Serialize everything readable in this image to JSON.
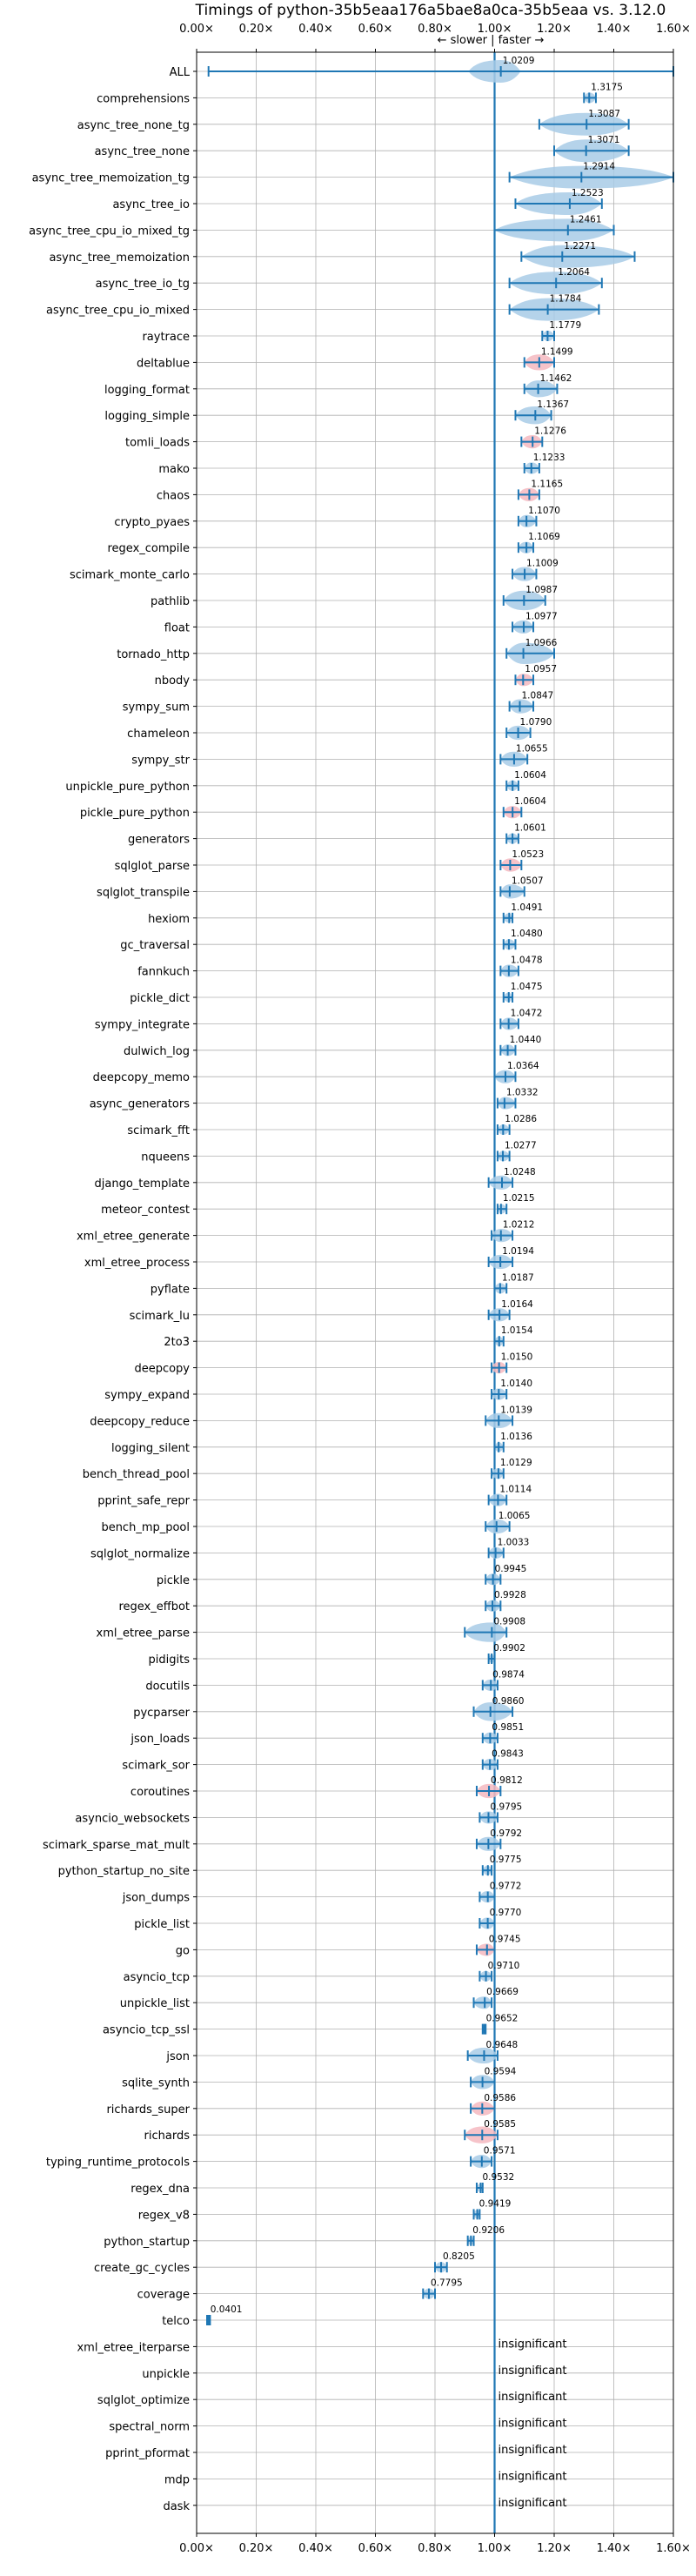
{
  "chart_data": {
    "type": "violin",
    "title": "Timings of python-35b5eaa176a5bae8a0ca-35b5eaa vs. 3.12.0",
    "direction_label": "← slower | faster →",
    "xlim": [
      0,
      1.6
    ],
    "xticks": [
      "0.00×",
      "0.20×",
      "0.40×",
      "0.60×",
      "0.80×",
      "1.00×",
      "1.20×",
      "1.40×",
      "1.60×"
    ],
    "reference_line": 1.0,
    "grid": true,
    "insignificant_label": "insignificant",
    "benchmarks": [
      {
        "name": "ALL",
        "value": 1.0209,
        "label": "1.0209",
        "lo": 0.04,
        "hi": 1.6
      },
      {
        "name": "comprehensions",
        "value": 1.3175,
        "label": "1.3175",
        "lo": 1.3,
        "hi": 1.34
      },
      {
        "name": "async_tree_none_tg",
        "value": 1.3087,
        "label": "1.3087",
        "lo": 1.15,
        "hi": 1.45
      },
      {
        "name": "async_tree_none",
        "value": 1.3071,
        "label": "1.3071",
        "lo": 1.2,
        "hi": 1.45
      },
      {
        "name": "async_tree_memoization_tg",
        "value": 1.2914,
        "label": "1.2914",
        "lo": 1.05,
        "hi": 1.6
      },
      {
        "name": "async_tree_io",
        "value": 1.2523,
        "label": "1.2523",
        "lo": 1.07,
        "hi": 1.36
      },
      {
        "name": "async_tree_cpu_io_mixed_tg",
        "value": 1.2461,
        "label": "1.2461",
        "lo": 1.0,
        "hi": 1.4
      },
      {
        "name": "async_tree_memoization",
        "value": 1.2271,
        "label": "1.2271",
        "lo": 1.09,
        "hi": 1.47
      },
      {
        "name": "async_tree_io_tg",
        "value": 1.2064,
        "label": "1.2064",
        "lo": 1.05,
        "hi": 1.36
      },
      {
        "name": "async_tree_cpu_io_mixed",
        "value": 1.1784,
        "label": "1.1784",
        "lo": 1.05,
        "hi": 1.35
      },
      {
        "name": "raytrace",
        "value": 1.1779,
        "label": "1.1779",
        "lo": 1.16,
        "hi": 1.2
      },
      {
        "name": "deltablue",
        "value": 1.1499,
        "label": "1.1499",
        "lo": 1.1,
        "hi": 1.2,
        "pink": true
      },
      {
        "name": "logging_format",
        "value": 1.1462,
        "label": "1.1462",
        "lo": 1.1,
        "hi": 1.21
      },
      {
        "name": "logging_simple",
        "value": 1.1367,
        "label": "1.1367",
        "lo": 1.07,
        "hi": 1.19
      },
      {
        "name": "tomli_loads",
        "value": 1.1276,
        "label": "1.1276",
        "lo": 1.09,
        "hi": 1.16,
        "pink": true
      },
      {
        "name": "mako",
        "value": 1.1233,
        "label": "1.1233",
        "lo": 1.1,
        "hi": 1.15
      },
      {
        "name": "chaos",
        "value": 1.1165,
        "label": "1.1165",
        "lo": 1.08,
        "hi": 1.15,
        "pink": true
      },
      {
        "name": "crypto_pyaes",
        "value": 1.107,
        "label": "1.1070",
        "lo": 1.08,
        "hi": 1.14
      },
      {
        "name": "regex_compile",
        "value": 1.1069,
        "label": "1.1069",
        "lo": 1.08,
        "hi": 1.13
      },
      {
        "name": "scimark_monte_carlo",
        "value": 1.1009,
        "label": "1.1009",
        "lo": 1.06,
        "hi": 1.14
      },
      {
        "name": "pathlib",
        "value": 1.0987,
        "label": "1.0987",
        "lo": 1.03,
        "hi": 1.17
      },
      {
        "name": "float",
        "value": 1.0977,
        "label": "1.0977",
        "lo": 1.06,
        "hi": 1.13
      },
      {
        "name": "tornado_http",
        "value": 1.0966,
        "label": "1.0966",
        "lo": 1.04,
        "hi": 1.2
      },
      {
        "name": "nbody",
        "value": 1.0957,
        "label": "1.0957",
        "lo": 1.07,
        "hi": 1.13,
        "pink": true
      },
      {
        "name": "sympy_sum",
        "value": 1.0847,
        "label": "1.0847",
        "lo": 1.05,
        "hi": 1.13
      },
      {
        "name": "chameleon",
        "value": 1.079,
        "label": "1.0790",
        "lo": 1.04,
        "hi": 1.12
      },
      {
        "name": "sympy_str",
        "value": 1.0655,
        "label": "1.0655",
        "lo": 1.02,
        "hi": 1.11
      },
      {
        "name": "unpickle_pure_python",
        "value": 1.0604,
        "label": "1.0604",
        "lo": 1.04,
        "hi": 1.08
      },
      {
        "name": "pickle_pure_python",
        "value": 1.0604,
        "label": "1.0604",
        "lo": 1.03,
        "hi": 1.09,
        "pink": true
      },
      {
        "name": "generators",
        "value": 1.0601,
        "label": "1.0601",
        "lo": 1.04,
        "hi": 1.08
      },
      {
        "name": "sqlglot_parse",
        "value": 1.0523,
        "label": "1.0523",
        "lo": 1.02,
        "hi": 1.09,
        "pink": true
      },
      {
        "name": "sqlglot_transpile",
        "value": 1.0507,
        "label": "1.0507",
        "lo": 1.02,
        "hi": 1.1
      },
      {
        "name": "hexiom",
        "value": 1.0491,
        "label": "1.0491",
        "lo": 1.03,
        "hi": 1.06
      },
      {
        "name": "gc_traversal",
        "value": 1.048,
        "label": "1.0480",
        "lo": 1.03,
        "hi": 1.07
      },
      {
        "name": "fannkuch",
        "value": 1.0478,
        "label": "1.0478",
        "lo": 1.02,
        "hi": 1.08
      },
      {
        "name": "pickle_dict",
        "value": 1.0475,
        "label": "1.0475",
        "lo": 1.03,
        "hi": 1.06
      },
      {
        "name": "sympy_integrate",
        "value": 1.0472,
        "label": "1.0472",
        "lo": 1.02,
        "hi": 1.08
      },
      {
        "name": "dulwich_log",
        "value": 1.044,
        "label": "1.0440",
        "lo": 1.02,
        "hi": 1.07
      },
      {
        "name": "deepcopy_memo",
        "value": 1.0364,
        "label": "1.0364",
        "lo": 1.0,
        "hi": 1.07
      },
      {
        "name": "async_generators",
        "value": 1.0332,
        "label": "1.0332",
        "lo": 1.01,
        "hi": 1.07
      },
      {
        "name": "scimark_fft",
        "value": 1.0286,
        "label": "1.0286",
        "lo": 1.01,
        "hi": 1.05
      },
      {
        "name": "nqueens",
        "value": 1.0277,
        "label": "1.0277",
        "lo": 1.01,
        "hi": 1.05
      },
      {
        "name": "django_template",
        "value": 1.0248,
        "label": "1.0248",
        "lo": 0.98,
        "hi": 1.06
      },
      {
        "name": "meteor_contest",
        "value": 1.0215,
        "label": "1.0215",
        "lo": 1.01,
        "hi": 1.04
      },
      {
        "name": "xml_etree_generate",
        "value": 1.0212,
        "label": "1.0212",
        "lo": 0.99,
        "hi": 1.06
      },
      {
        "name": "xml_etree_process",
        "value": 1.0194,
        "label": "1.0194",
        "lo": 0.98,
        "hi": 1.06
      },
      {
        "name": "pyflate",
        "value": 1.0187,
        "label": "1.0187",
        "lo": 1.0,
        "hi": 1.04
      },
      {
        "name": "scimark_lu",
        "value": 1.0164,
        "label": "1.0164",
        "lo": 0.98,
        "hi": 1.05
      },
      {
        "name": "2to3",
        "value": 1.0154,
        "label": "1.0154",
        "lo": 1.0,
        "hi": 1.03
      },
      {
        "name": "deepcopy",
        "value": 1.015,
        "label": "1.0150",
        "lo": 0.99,
        "hi": 1.04,
        "pink": true
      },
      {
        "name": "sympy_expand",
        "value": 1.014,
        "label": "1.0140",
        "lo": 0.99,
        "hi": 1.04
      },
      {
        "name": "deepcopy_reduce",
        "value": 1.0139,
        "label": "1.0139",
        "lo": 0.97,
        "hi": 1.06
      },
      {
        "name": "logging_silent",
        "value": 1.0136,
        "label": "1.0136",
        "lo": 1.0,
        "hi": 1.03
      },
      {
        "name": "bench_thread_pool",
        "value": 1.0129,
        "label": "1.0129",
        "lo": 0.99,
        "hi": 1.03
      },
      {
        "name": "pprint_safe_repr",
        "value": 1.0114,
        "label": "1.0114",
        "lo": 0.98,
        "hi": 1.04
      },
      {
        "name": "bench_mp_pool",
        "value": 1.0065,
        "label": "1.0065",
        "lo": 0.97,
        "hi": 1.05
      },
      {
        "name": "sqlglot_normalize",
        "value": 1.0033,
        "label": "1.0033",
        "lo": 0.98,
        "hi": 1.03
      },
      {
        "name": "pickle",
        "value": 0.9945,
        "label": "0.9945",
        "lo": 0.97,
        "hi": 1.02
      },
      {
        "name": "regex_effbot",
        "value": 0.9928,
        "label": "0.9928",
        "lo": 0.97,
        "hi": 1.02
      },
      {
        "name": "xml_etree_parse",
        "value": 0.9908,
        "label": "0.9908",
        "lo": 0.9,
        "hi": 1.04
      },
      {
        "name": "pidigits",
        "value": 0.9902,
        "label": "0.9902",
        "lo": 0.98,
        "hi": 1.0
      },
      {
        "name": "docutils",
        "value": 0.9874,
        "label": "0.9874",
        "lo": 0.96,
        "hi": 1.01
      },
      {
        "name": "pycparser",
        "value": 0.986,
        "label": "0.9860",
        "lo": 0.93,
        "hi": 1.06
      },
      {
        "name": "json_loads",
        "value": 0.9851,
        "label": "0.9851",
        "lo": 0.96,
        "hi": 1.01
      },
      {
        "name": "scimark_sor",
        "value": 0.9843,
        "label": "0.9843",
        "lo": 0.96,
        "hi": 1.01
      },
      {
        "name": "coroutines",
        "value": 0.9812,
        "label": "0.9812",
        "lo": 0.94,
        "hi": 1.02,
        "pink": true
      },
      {
        "name": "asyncio_websockets",
        "value": 0.9795,
        "label": "0.9795",
        "lo": 0.95,
        "hi": 1.01
      },
      {
        "name": "scimark_sparse_mat_mult",
        "value": 0.9792,
        "label": "0.9792",
        "lo": 0.94,
        "hi": 1.02
      },
      {
        "name": "python_startup_no_site",
        "value": 0.9775,
        "label": "0.9775",
        "lo": 0.96,
        "hi": 0.99
      },
      {
        "name": "json_dumps",
        "value": 0.9772,
        "label": "0.9772",
        "lo": 0.95,
        "hi": 1.0
      },
      {
        "name": "pickle_list",
        "value": 0.977,
        "label": "0.9770",
        "lo": 0.95,
        "hi": 1.0
      },
      {
        "name": "go",
        "value": 0.9745,
        "label": "0.9745",
        "lo": 0.94,
        "hi": 1.0,
        "pink": true
      },
      {
        "name": "asyncio_tcp",
        "value": 0.971,
        "label": "0.9710",
        "lo": 0.95,
        "hi": 0.99
      },
      {
        "name": "unpickle_list",
        "value": 0.9669,
        "label": "0.9669",
        "lo": 0.93,
        "hi": 0.99
      },
      {
        "name": "asyncio_tcp_ssl",
        "value": 0.9652,
        "label": "0.9652",
        "lo": 0.96,
        "hi": 0.97
      },
      {
        "name": "json",
        "value": 0.9648,
        "label": "0.9648",
        "lo": 0.91,
        "hi": 1.01
      },
      {
        "name": "sqlite_synth",
        "value": 0.9594,
        "label": "0.9594",
        "lo": 0.92,
        "hi": 1.0
      },
      {
        "name": "richards_super",
        "value": 0.9586,
        "label": "0.9586",
        "lo": 0.92,
        "hi": 1.0,
        "pink": true
      },
      {
        "name": "richards",
        "value": 0.9585,
        "label": "0.9585",
        "lo": 0.9,
        "hi": 1.01,
        "pink": true
      },
      {
        "name": "typing_runtime_protocols",
        "value": 0.9571,
        "label": "0.9571",
        "lo": 0.92,
        "hi": 0.99
      },
      {
        "name": "regex_dna",
        "value": 0.9532,
        "label": "0.9532",
        "lo": 0.94,
        "hi": 0.96
      },
      {
        "name": "regex_v8",
        "value": 0.9419,
        "label": "0.9419",
        "lo": 0.93,
        "hi": 0.95
      },
      {
        "name": "python_startup",
        "value": 0.9206,
        "label": "0.9206",
        "lo": 0.91,
        "hi": 0.93
      },
      {
        "name": "create_gc_cycles",
        "value": 0.8205,
        "label": "0.8205",
        "lo": 0.8,
        "hi": 0.84
      },
      {
        "name": "coverage",
        "value": 0.7795,
        "label": "0.7795",
        "lo": 0.76,
        "hi": 0.8
      },
      {
        "name": "telco",
        "value": 0.0401,
        "label": "0.0401",
        "lo": 0.035,
        "hi": 0.045
      },
      {
        "name": "xml_etree_iterparse",
        "insignificant": true
      },
      {
        "name": "unpickle",
        "insignificant": true
      },
      {
        "name": "sqlglot_optimize",
        "insignificant": true
      },
      {
        "name": "spectral_norm",
        "insignificant": true
      },
      {
        "name": "pprint_pformat",
        "insignificant": true
      },
      {
        "name": "mdp",
        "insignificant": true
      },
      {
        "name": "dask",
        "insignificant": true
      }
    ]
  },
  "colors": {
    "line": "#1f77b4",
    "violin": "#a8cbe6",
    "violin_pink": "#f4b8c0",
    "grid": "#b0b0b0",
    "axes": "#000000",
    "text": "#000000"
  }
}
